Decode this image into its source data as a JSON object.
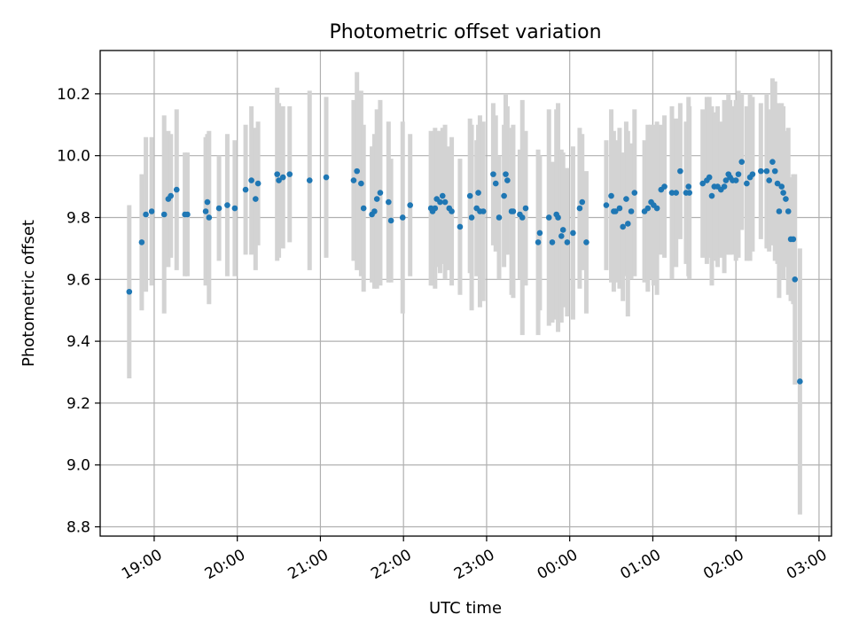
{
  "chart_data": {
    "type": "scatter",
    "title": "Photometric offset variation",
    "xlabel": "UTC time",
    "ylabel": "Photometric offset",
    "grid": true,
    "xlim_hours": [
      18.35,
      27.15
    ],
    "ylim": [
      8.77,
      10.34
    ],
    "x_ticks": [
      {
        "hour": 19,
        "label": "19:00"
      },
      {
        "hour": 20,
        "label": "20:00"
      },
      {
        "hour": 21,
        "label": "21:00"
      },
      {
        "hour": 22,
        "label": "22:00"
      },
      {
        "hour": 23,
        "label": "23:00"
      },
      {
        "hour": 24,
        "label": "00:00"
      },
      {
        "hour": 25,
        "label": "01:00"
      },
      {
        "hour": 26,
        "label": "02:00"
      },
      {
        "hour": 27,
        "label": "03:00"
      }
    ],
    "y_ticks": [
      {
        "value": 8.8,
        "label": "8.8"
      },
      {
        "value": 9.0,
        "label": "9.0"
      },
      {
        "value": 9.2,
        "label": "9.2"
      },
      {
        "value": 9.4,
        "label": "9.4"
      },
      {
        "value": 9.6,
        "label": "9.6"
      },
      {
        "value": 9.8,
        "label": "9.8"
      },
      {
        "value": 10.0,
        "label": "10.0"
      },
      {
        "value": 10.2,
        "label": "10.2"
      }
    ],
    "colors": {
      "points": "#1f77b4",
      "errorbars": "#d3d3d3",
      "grid": "#b0b0b0"
    },
    "points": [
      [
        18.7,
        9.56,
        0.28
      ],
      [
        18.85,
        9.72,
        0.22
      ],
      [
        18.9,
        9.81,
        0.25
      ],
      [
        18.97,
        9.82,
        0.24
      ],
      [
        19.12,
        9.81,
        0.32
      ],
      [
        19.17,
        9.86,
        0.22
      ],
      [
        19.2,
        9.87,
        0.2
      ],
      [
        19.27,
        9.89,
        0.26
      ],
      [
        19.37,
        9.81,
        0.2
      ],
      [
        19.4,
        9.81,
        0.2
      ],
      [
        19.62,
        9.82,
        0.24
      ],
      [
        19.64,
        9.85,
        0.22
      ],
      [
        19.66,
        9.8,
        0.28
      ],
      [
        19.78,
        9.83,
        0.17
      ],
      [
        19.88,
        9.84,
        0.23
      ],
      [
        19.97,
        9.83,
        0.22
      ],
      [
        20.1,
        9.89,
        0.21
      ],
      [
        20.17,
        9.92,
        0.24
      ],
      [
        20.22,
        9.86,
        0.23
      ],
      [
        20.25,
        9.91,
        0.2
      ],
      [
        20.48,
        9.94,
        0.28
      ],
      [
        20.5,
        9.92,
        0.25
      ],
      [
        20.55,
        9.93,
        0.23
      ],
      [
        20.63,
        9.94,
        0.22
      ],
      [
        20.87,
        9.92,
        0.29
      ],
      [
        21.07,
        9.93,
        0.26
      ],
      [
        21.4,
        9.92,
        0.26
      ],
      [
        21.44,
        9.95,
        0.32
      ],
      [
        21.49,
        9.91,
        0.3
      ],
      [
        21.52,
        9.83,
        0.27
      ],
      [
        21.62,
        9.81,
        0.22
      ],
      [
        21.65,
        9.82,
        0.25
      ],
      [
        21.68,
        9.86,
        0.29
      ],
      [
        21.72,
        9.88,
        0.3
      ],
      [
        21.82,
        9.85,
        0.26
      ],
      [
        21.85,
        9.79,
        0.2
      ],
      [
        21.99,
        9.8,
        0.31
      ],
      [
        22.08,
        9.84,
        0.23
      ],
      [
        22.33,
        9.83,
        0.25
      ],
      [
        22.35,
        9.82,
        0.24
      ],
      [
        22.38,
        9.83,
        0.26
      ],
      [
        22.4,
        9.86,
        0.22
      ],
      [
        22.44,
        9.85,
        0.23
      ],
      [
        22.47,
        9.87,
        0.22
      ],
      [
        22.5,
        9.85,
        0.25
      ],
      [
        22.55,
        9.83,
        0.2
      ],
      [
        22.58,
        9.82,
        0.24
      ],
      [
        22.68,
        9.77,
        0.22
      ],
      [
        22.8,
        9.87,
        0.25
      ],
      [
        22.82,
        9.8,
        0.3
      ],
      [
        22.88,
        9.83,
        0.22
      ],
      [
        22.9,
        9.88,
        0.22
      ],
      [
        22.92,
        9.82,
        0.31
      ],
      [
        22.96,
        9.82,
        0.29
      ],
      [
        23.08,
        9.94,
        0.23
      ],
      [
        23.11,
        9.91,
        0.22
      ],
      [
        23.15,
        9.8,
        0.2
      ],
      [
        23.21,
        9.87,
        0.23
      ],
      [
        23.23,
        9.94,
        0.26
      ],
      [
        23.25,
        9.92,
        0.24
      ],
      [
        23.3,
        9.82,
        0.27
      ],
      [
        23.32,
        9.82,
        0.28
      ],
      [
        23.4,
        9.81,
        0.21
      ],
      [
        23.43,
        9.8,
        0.38
      ],
      [
        23.47,
        9.83,
        0.25
      ],
      [
        23.62,
        9.72,
        0.3
      ],
      [
        23.64,
        9.75,
        0.25
      ],
      [
        23.75,
        9.8,
        0.35
      ],
      [
        23.79,
        9.72,
        0.26
      ],
      [
        23.84,
        9.81,
        0.34
      ],
      [
        23.86,
        9.8,
        0.37
      ],
      [
        23.9,
        9.74,
        0.28
      ],
      [
        23.92,
        9.76,
        0.25
      ],
      [
        23.97,
        9.72,
        0.24
      ],
      [
        24.04,
        9.75,
        0.28
      ],
      [
        24.12,
        9.83,
        0.26
      ],
      [
        24.15,
        9.85,
        0.22
      ],
      [
        24.2,
        9.72,
        0.23
      ],
      [
        24.44,
        9.84,
        0.21
      ],
      [
        24.5,
        9.87,
        0.28
      ],
      [
        24.53,
        9.82,
        0.26
      ],
      [
        24.55,
        9.82,
        0.23
      ],
      [
        24.6,
        9.83,
        0.26
      ],
      [
        24.64,
        9.77,
        0.24
      ],
      [
        24.68,
        9.86,
        0.25
      ],
      [
        24.7,
        9.78,
        0.3
      ],
      [
        24.74,
        9.82,
        0.22
      ],
      [
        24.78,
        9.88,
        0.27
      ],
      [
        24.9,
        9.82,
        0.23
      ],
      [
        24.94,
        9.83,
        0.27
      ],
      [
        24.98,
        9.85,
        0.25
      ],
      [
        25.01,
        9.84,
        0.26
      ],
      [
        25.05,
        9.83,
        0.28
      ],
      [
        25.1,
        9.89,
        0.21
      ],
      [
        25.14,
        9.9,
        0.23
      ],
      [
        25.23,
        9.88,
        0.28
      ],
      [
        25.28,
        9.88,
        0.24
      ],
      [
        25.33,
        9.95,
        0.22
      ],
      [
        25.4,
        9.88,
        0.23
      ],
      [
        25.43,
        9.9,
        0.29
      ],
      [
        25.44,
        9.88,
        0.28
      ],
      [
        25.6,
        9.91,
        0.24
      ],
      [
        25.65,
        9.92,
        0.27
      ],
      [
        25.68,
        9.93,
        0.26
      ],
      [
        25.71,
        9.87,
        0.29
      ],
      [
        25.74,
        9.9,
        0.24
      ],
      [
        25.78,
        9.9,
        0.26
      ],
      [
        25.82,
        9.89,
        0.22
      ],
      [
        25.86,
        9.9,
        0.28
      ],
      [
        25.88,
        9.92,
        0.24
      ],
      [
        25.91,
        9.94,
        0.26
      ],
      [
        25.93,
        9.93,
        0.25
      ],
      [
        25.96,
        9.92,
        0.24
      ],
      [
        26.0,
        9.92,
        0.26
      ],
      [
        26.03,
        9.94,
        0.27
      ],
      [
        26.07,
        9.98,
        0.22
      ],
      [
        26.13,
        9.91,
        0.25
      ],
      [
        26.17,
        9.93,
        0.27
      ],
      [
        26.2,
        9.94,
        0.25
      ],
      [
        26.3,
        9.95,
        0.22
      ],
      [
        26.37,
        9.95,
        0.25
      ],
      [
        26.4,
        9.92,
        0.23
      ],
      [
        26.44,
        9.98,
        0.27
      ],
      [
        26.47,
        9.95,
        0.29
      ],
      [
        26.5,
        9.91,
        0.26
      ],
      [
        26.52,
        9.82,
        0.28
      ],
      [
        26.55,
        9.9,
        0.27
      ],
      [
        26.57,
        9.88,
        0.28
      ],
      [
        26.6,
        9.86,
        0.22
      ],
      [
        26.63,
        9.82,
        0.27
      ],
      [
        26.66,
        9.73,
        0.2
      ],
      [
        26.69,
        9.73,
        0.21
      ],
      [
        26.71,
        9.6,
        0.34
      ],
      [
        26.77,
        9.27,
        0.43
      ]
    ]
  }
}
